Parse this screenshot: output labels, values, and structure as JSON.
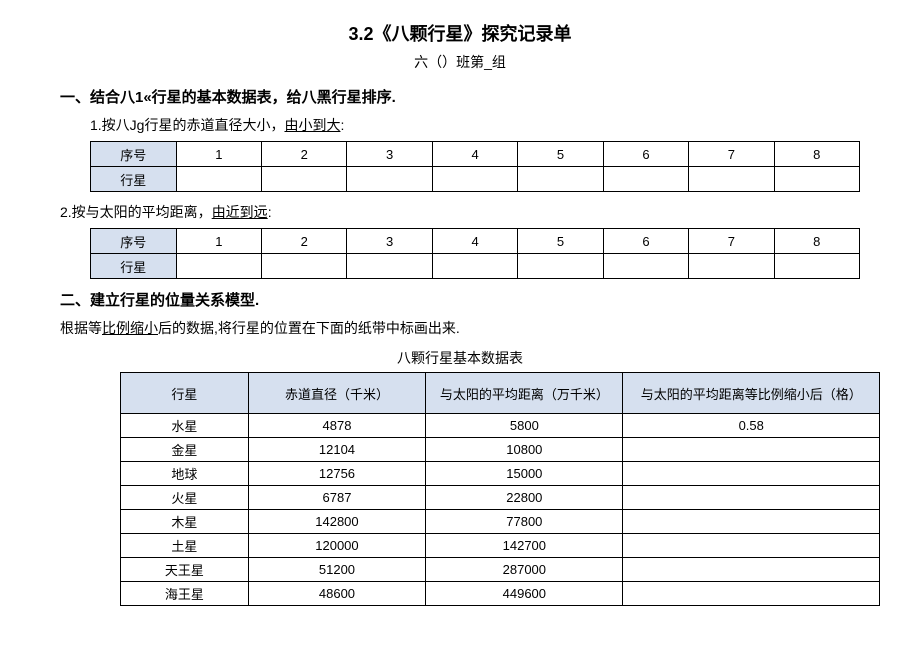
{
  "title": "3.2《八颗行星》探究记录单",
  "subtitle": "六（）班第_组",
  "section1": {
    "heading": "一、结合八1«行星的基本数据表，给八黑行星排序.",
    "q1_prefix": "1.按八Jg行星的赤道直径大小，",
    "q1_underlined": "由小到大",
    "q1_suffix": ":",
    "q2_prefix": "2.按与太阳的平均距离，",
    "q2_underlined": "由近到远",
    "q2_suffix": ":",
    "row_label_index": "序号",
    "row_label_planet": "行星",
    "columns": [
      "1",
      "2",
      "3",
      "4",
      "5",
      "6",
      "7",
      "8"
    ]
  },
  "section2": {
    "heading": "二、建立行星的位量关系模型.",
    "note_prefix": "根据等",
    "note_underlined": "比例缩小",
    "note_suffix": "后的数据,将行星的位置在下面的纸带中标画出来.",
    "caption": "八颗行星基本数据表",
    "headers": {
      "planet": "行星",
      "diameter": "赤道直径（千米）",
      "distance": "与太阳的平均距离（万千米）",
      "scaled": "与太阳的平均距离等比例缩小后（格）"
    },
    "rows": [
      {
        "planet": "水星",
        "diameter": "4878",
        "distance": "5800",
        "scaled": "0.58"
      },
      {
        "planet": "金星",
        "diameter": "12104",
        "distance": "10800",
        "scaled": ""
      },
      {
        "planet": "地球",
        "diameter": "12756",
        "distance": "15000",
        "scaled": ""
      },
      {
        "planet": "火星",
        "diameter": "6787",
        "distance": "22800",
        "scaled": ""
      },
      {
        "planet": "木星",
        "diameter": "142800",
        "distance": "77800",
        "scaled": ""
      },
      {
        "planet": "土星",
        "diameter": "120000",
        "distance": "142700",
        "scaled": ""
      },
      {
        "planet": "天王星",
        "diameter": "51200",
        "distance": "287000",
        "scaled": ""
      },
      {
        "planet": "海王星",
        "diameter": "48600",
        "distance": "449600",
        "scaled": ""
      }
    ]
  }
}
